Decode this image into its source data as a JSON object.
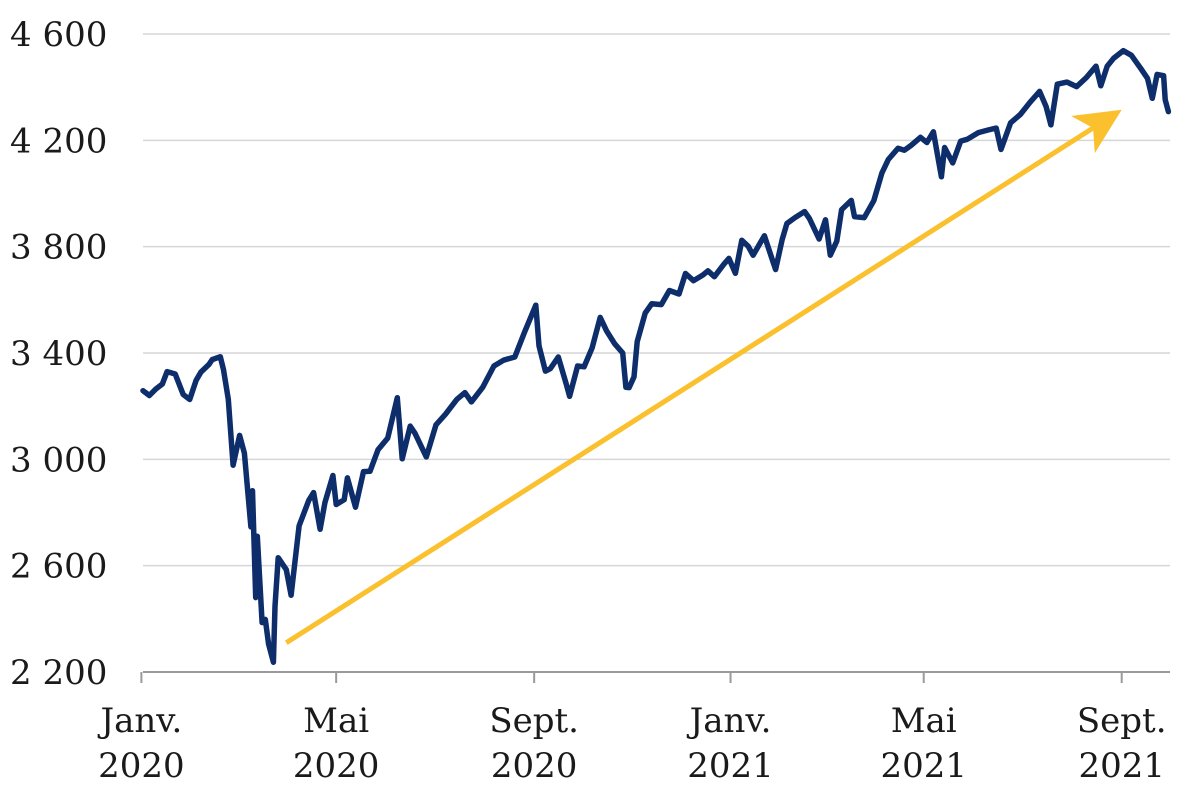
{
  "chart_data": {
    "type": "line",
    "title": "",
    "xlabel": "",
    "ylabel": "",
    "ylim": [
      2200,
      4600
    ],
    "xlim": [
      "2020-01-02",
      "2021-10-01"
    ],
    "grid": "horizontal",
    "legend": "none",
    "y_ticks": [
      {
        "value": 2200,
        "label": "2 200"
      },
      {
        "value": 2600,
        "label": "2 600"
      },
      {
        "value": 3000,
        "label": "3 000"
      },
      {
        "value": 3400,
        "label": "3 400"
      },
      {
        "value": 3800,
        "label": "3 800"
      },
      {
        "value": 4200,
        "label": "4 200"
      },
      {
        "value": 4600,
        "label": "4 600"
      }
    ],
    "x_ticks": [
      {
        "date": "2020-01-01",
        "line1": "Janv.",
        "line2": "2020"
      },
      {
        "date": "2020-05-01",
        "line1": "Mai",
        "line2": "2020"
      },
      {
        "date": "2020-09-01",
        "line1": "Sept.",
        "line2": "2020"
      },
      {
        "date": "2021-01-01",
        "line1": "Janv.",
        "line2": "2021"
      },
      {
        "date": "2021-05-01",
        "line1": "Mai",
        "line2": "2021"
      },
      {
        "date": "2021-09-01",
        "line1": "Sept.",
        "line2": "2021"
      }
    ],
    "series": [
      {
        "color": "#0d2d6b",
        "points": [
          [
            "2020-01-02",
            3258
          ],
          [
            "2020-01-06",
            3240
          ],
          [
            "2020-01-10",
            3265
          ],
          [
            "2020-01-14",
            3283
          ],
          [
            "2020-01-17",
            3330
          ],
          [
            "2020-01-22",
            3321
          ],
          [
            "2020-01-27",
            3244
          ],
          [
            "2020-01-31",
            3225
          ],
          [
            "2020-02-04",
            3297
          ],
          [
            "2020-02-07",
            3328
          ],
          [
            "2020-02-12",
            3357
          ],
          [
            "2020-02-14",
            3375
          ],
          [
            "2020-02-19",
            3386
          ],
          [
            "2020-02-21",
            3337
          ],
          [
            "2020-02-24",
            3226
          ],
          [
            "2020-02-27",
            2978
          ],
          [
            "2020-03-02",
            3090
          ],
          [
            "2020-03-05",
            3023
          ],
          [
            "2020-03-09",
            2746
          ],
          [
            "2020-03-10",
            2882
          ],
          [
            "2020-03-12",
            2480
          ],
          [
            "2020-03-13",
            2711
          ],
          [
            "2020-03-16",
            2386
          ],
          [
            "2020-03-18",
            2398
          ],
          [
            "2020-03-20",
            2305
          ],
          [
            "2020-03-23",
            2237
          ],
          [
            "2020-03-24",
            2447
          ],
          [
            "2020-03-26",
            2630
          ],
          [
            "2020-03-31",
            2585
          ],
          [
            "2020-04-03",
            2489
          ],
          [
            "2020-04-08",
            2750
          ],
          [
            "2020-04-14",
            2846
          ],
          [
            "2020-04-17",
            2875
          ],
          [
            "2020-04-21",
            2737
          ],
          [
            "2020-04-24",
            2837
          ],
          [
            "2020-04-29",
            2939
          ],
          [
            "2020-05-01",
            2830
          ],
          [
            "2020-05-06",
            2848
          ],
          [
            "2020-05-08",
            2930
          ],
          [
            "2020-05-13",
            2820
          ],
          [
            "2020-05-18",
            2954
          ],
          [
            "2020-05-22",
            2955
          ],
          [
            "2020-05-27",
            3036
          ],
          [
            "2020-06-02",
            3080
          ],
          [
            "2020-06-08",
            3232
          ],
          [
            "2020-06-11",
            3002
          ],
          [
            "2020-06-16",
            3125
          ],
          [
            "2020-06-19",
            3098
          ],
          [
            "2020-06-26",
            3009
          ],
          [
            "2020-07-02",
            3130
          ],
          [
            "2020-07-08",
            3170
          ],
          [
            "2020-07-15",
            3226
          ],
          [
            "2020-07-20",
            3251
          ],
          [
            "2020-07-24",
            3216
          ],
          [
            "2020-07-31",
            3271
          ],
          [
            "2020-08-07",
            3351
          ],
          [
            "2020-08-13",
            3373
          ],
          [
            "2020-08-20",
            3385
          ],
          [
            "2020-08-26",
            3478
          ],
          [
            "2020-09-02",
            3580
          ],
          [
            "2020-09-04",
            3427
          ],
          [
            "2020-09-08",
            3332
          ],
          [
            "2020-09-11",
            3341
          ],
          [
            "2020-09-16",
            3385
          ],
          [
            "2020-09-21",
            3281
          ],
          [
            "2020-09-23",
            3237
          ],
          [
            "2020-09-28",
            3351
          ],
          [
            "2020-10-02",
            3348
          ],
          [
            "2020-10-07",
            3419
          ],
          [
            "2020-10-12",
            3534
          ],
          [
            "2020-10-16",
            3483
          ],
          [
            "2020-10-21",
            3435
          ],
          [
            "2020-10-26",
            3400
          ],
          [
            "2020-10-28",
            3271
          ],
          [
            "2020-10-30",
            3270
          ],
          [
            "2020-11-02",
            3310
          ],
          [
            "2020-11-04",
            3443
          ],
          [
            "2020-11-09",
            3550
          ],
          [
            "2020-11-13",
            3585
          ],
          [
            "2020-11-19",
            3582
          ],
          [
            "2020-11-24",
            3635
          ],
          [
            "2020-11-30",
            3622
          ],
          [
            "2020-12-04",
            3699
          ],
          [
            "2020-12-09",
            3672
          ],
          [
            "2020-12-15",
            3694
          ],
          [
            "2020-12-18",
            3709
          ],
          [
            "2020-12-22",
            3687
          ],
          [
            "2020-12-28",
            3735
          ],
          [
            "2020-12-31",
            3756
          ],
          [
            "2021-01-04",
            3700
          ],
          [
            "2021-01-08",
            3824
          ],
          [
            "2021-01-12",
            3801
          ],
          [
            "2021-01-15",
            3768
          ],
          [
            "2021-01-22",
            3841
          ],
          [
            "2021-01-27",
            3750
          ],
          [
            "2021-01-29",
            3714
          ],
          [
            "2021-02-02",
            3826
          ],
          [
            "2021-02-05",
            3887
          ],
          [
            "2021-02-10",
            3909
          ],
          [
            "2021-02-16",
            3932
          ],
          [
            "2021-02-19",
            3906
          ],
          [
            "2021-02-25",
            3829
          ],
          [
            "2021-03-01",
            3901
          ],
          [
            "2021-03-04",
            3768
          ],
          [
            "2021-03-08",
            3821
          ],
          [
            "2021-03-11",
            3939
          ],
          [
            "2021-03-17",
            3974
          ],
          [
            "2021-03-19",
            3913
          ],
          [
            "2021-03-25",
            3909
          ],
          [
            "2021-03-31",
            3973
          ],
          [
            "2021-04-05",
            4077
          ],
          [
            "2021-04-09",
            4128
          ],
          [
            "2021-04-15",
            4170
          ],
          [
            "2021-04-19",
            4163
          ],
          [
            "2021-04-23",
            4180
          ],
          [
            "2021-04-29",
            4211
          ],
          [
            "2021-05-03",
            4192
          ],
          [
            "2021-05-07",
            4232
          ],
          [
            "2021-05-12",
            4063
          ],
          [
            "2021-05-14",
            4173
          ],
          [
            "2021-05-19",
            4115
          ],
          [
            "2021-05-24",
            4197
          ],
          [
            "2021-05-28",
            4204
          ],
          [
            "2021-06-04",
            4229
          ],
          [
            "2021-06-10",
            4239
          ],
          [
            "2021-06-15",
            4246
          ],
          [
            "2021-06-18",
            4166
          ],
          [
            "2021-06-24",
            4266
          ],
          [
            "2021-06-30",
            4297
          ],
          [
            "2021-07-06",
            4343
          ],
          [
            "2021-07-12",
            4384
          ],
          [
            "2021-07-16",
            4327
          ],
          [
            "2021-07-19",
            4258
          ],
          [
            "2021-07-23",
            4411
          ],
          [
            "2021-07-29",
            4419
          ],
          [
            "2021-08-04",
            4402
          ],
          [
            "2021-08-10",
            4436
          ],
          [
            "2021-08-16",
            4479
          ],
          [
            "2021-08-19",
            4405
          ],
          [
            "2021-08-23",
            4479
          ],
          [
            "2021-08-27",
            4509
          ],
          [
            "2021-09-02",
            4537
          ],
          [
            "2021-09-07",
            4520
          ],
          [
            "2021-09-13",
            4469
          ],
          [
            "2021-09-17",
            4433
          ],
          [
            "2021-09-20",
            4358
          ],
          [
            "2021-09-23",
            4448
          ],
          [
            "2021-09-27",
            4443
          ],
          [
            "2021-09-28",
            4353
          ],
          [
            "2021-09-30",
            4308
          ]
        ]
      }
    ],
    "annotations": [
      {
        "type": "arrow",
        "color": "#fbc02d",
        "from": [
          "2020-03-31",
          2310
        ],
        "to": [
          "2021-09-01",
          4315
        ]
      }
    ]
  }
}
